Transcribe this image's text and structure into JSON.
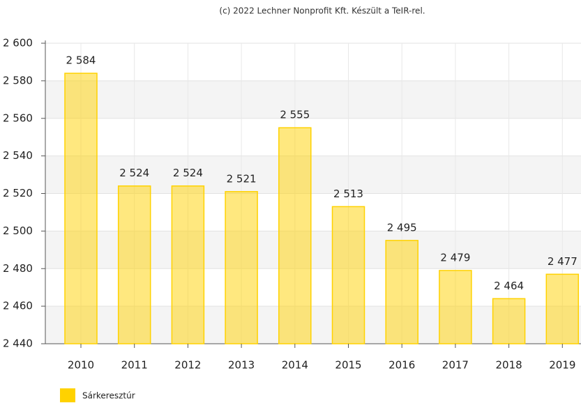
{
  "chart_data": {
    "type": "bar",
    "credit": "(c) 2022 Lechner Nonprofit Kft. Készült a TeIR-rel.",
    "categories": [
      "2010",
      "2011",
      "2012",
      "2013",
      "2014",
      "2015",
      "2016",
      "2017",
      "2018",
      "2019"
    ],
    "series": [
      {
        "name": "Sárkeresztúr",
        "color": "#ffd200",
        "values": [
          2584,
          2524,
          2524,
          2521,
          2555,
          2513,
          2495,
          2479,
          2464,
          2477
        ],
        "value_labels": [
          "2 584",
          "2 524",
          "2 524",
          "2 521",
          "2 555",
          "2 513",
          "2 495",
          "2 479",
          "2 464",
          "2 477"
        ]
      }
    ],
    "ylim": [
      2440,
      2600
    ],
    "yticks": [
      {
        "value": 2440,
        "label": "2 440"
      },
      {
        "value": 2460,
        "label": "2 460"
      },
      {
        "value": 2480,
        "label": "2 480"
      },
      {
        "value": 2500,
        "label": "2 500"
      },
      {
        "value": 2520,
        "label": "2 520"
      },
      {
        "value": 2540,
        "label": "2 540"
      },
      {
        "value": 2560,
        "label": "2 560"
      },
      {
        "value": 2580,
        "label": "2 580"
      },
      {
        "value": 2600,
        "label": "2 600"
      }
    ],
    "grid": true
  }
}
